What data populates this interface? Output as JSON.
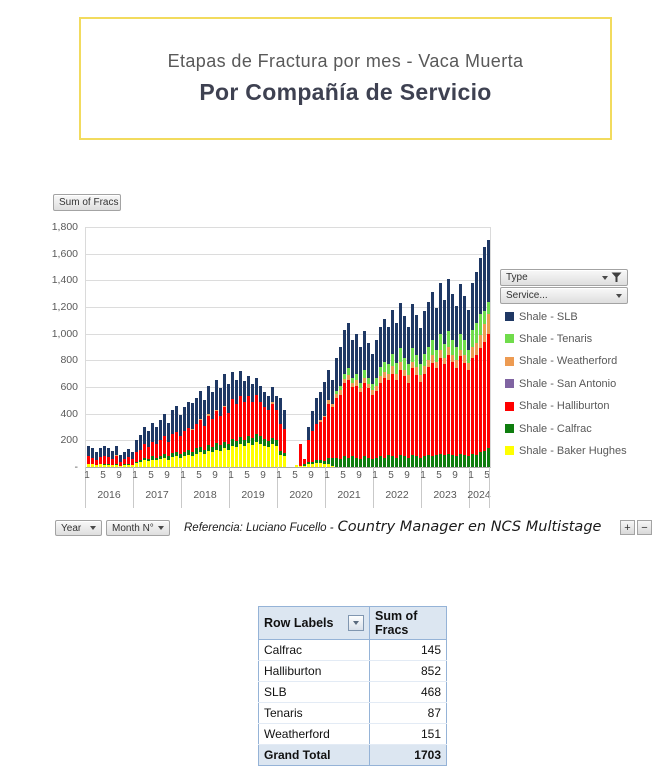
{
  "header": {
    "title_line1": "Etapas de Fractura por mes - Vaca Muerta",
    "title_line2": "Por Compañía de Servicio"
  },
  "chart": {
    "value_field_button": "Sum of Fracs",
    "type_field_button": "Type",
    "service_field_button": "Service...",
    "year_field_button": "Year",
    "month_field_button": "Month N°",
    "zoom_in_label": "+",
    "zoom_out_label": "−",
    "reference_prefix": "Referencia: Luciano Fucello -",
    "reference_suffix": "Country Manager en NCS Multistage"
  },
  "chart_data": {
    "type": "bar",
    "stacked": true,
    "title": "",
    "xlabel": "",
    "ylabel": "Sum of Fracs",
    "ylim": [
      0,
      1800
    ],
    "ytick_step": 200,
    "grid": true,
    "legend_position": "right",
    "ytick_labels": [
      "-",
      "200",
      "400",
      "600",
      "800",
      "1,000",
      "1,200",
      "1,400",
      "1,600",
      "1,800"
    ],
    "month_ticks": [
      1,
      5,
      9
    ],
    "years": [
      {
        "label": "2016",
        "months": 12
      },
      {
        "label": "2017",
        "months": 12
      },
      {
        "label": "2018",
        "months": 12
      },
      {
        "label": "2019",
        "months": 12
      },
      {
        "label": "2020",
        "months": 12
      },
      {
        "label": "2021",
        "months": 12
      },
      {
        "label": "2022",
        "months": 12
      },
      {
        "label": "2023",
        "months": 12
      },
      {
        "label": "2024",
        "months": 5
      }
    ],
    "series": [
      {
        "name": "Shale - Baker Hughes",
        "color": "#FFFF00",
        "values": [
          20,
          20,
          15,
          20,
          20,
          20,
          15,
          20,
          10,
          15,
          20,
          15,
          30,
          35,
          50,
          45,
          55,
          50,
          60,
          70,
          55,
          75,
          80,
          70,
          80,
          90,
          85,
          100,
          110,
          95,
          120,
          110,
          130,
          120,
          140,
          125,
          160,
          150,
          170,
          155,
          180,
          165,
          190,
          175,
          160,
          150,
          170,
          155,
          90,
          80,
          0,
          0,
          15,
          10,
          10,
          20,
          25,
          30,
          30,
          25,
          20,
          10,
          0,
          0,
          0,
          0,
          0,
          0,
          0,
          0,
          0,
          0,
          0,
          0,
          0,
          0,
          0,
          0,
          0,
          0,
          0,
          0,
          0,
          0,
          0,
          0,
          0,
          0,
          0,
          0,
          0,
          0,
          0,
          0,
          0,
          0,
          0,
          0,
          0,
          0,
          0
        ]
      },
      {
        "name": "Shale - Calfrac",
        "color": "#0E7D0E",
        "values": [
          0,
          0,
          0,
          0,
          5,
          5,
          0,
          5,
          0,
          5,
          5,
          0,
          10,
          15,
          20,
          15,
          25,
          20,
          25,
          30,
          25,
          30,
          35,
          30,
          30,
          35,
          30,
          40,
          40,
          35,
          45,
          40,
          50,
          45,
          50,
          45,
          50,
          45,
          55,
          50,
          55,
          50,
          60,
          55,
          50,
          45,
          50,
          45,
          30,
          25,
          0,
          0,
          0,
          0,
          10,
          15,
          15,
          20,
          20,
          20,
          50,
          60,
          70,
          60,
          80,
          70,
          80,
          70,
          60,
          80,
          70,
          60,
          70,
          80,
          70,
          90,
          80,
          70,
          90,
          80,
          70,
          90,
          80,
          70,
          80,
          90,
          80,
          90,
          100,
          90,
          100,
          90,
          80,
          100,
          90,
          80,
          100,
          90,
          110,
          120,
          145
        ]
      },
      {
        "name": "Shale - Halliburton",
        "color": "#FF0000",
        "values": [
          60,
          50,
          40,
          55,
          60,
          50,
          45,
          55,
          30,
          40,
          50,
          45,
          70,
          80,
          100,
          90,
          110,
          100,
          120,
          130,
          110,
          140,
          150,
          130,
          160,
          170,
          160,
          180,
          200,
          180,
          220,
          210,
          240,
          220,
          260,
          235,
          300,
          280,
          310,
          280,
          300,
          270,
          290,
          260,
          240,
          230,
          250,
          230,
          200,
          180,
          0,
          0,
          0,
          165,
          40,
          170,
          230,
          270,
          290,
          330,
          400,
          380,
          450,
          480,
          550,
          580,
          520,
          540,
          500,
          550,
          520,
          480,
          500,
          550,
          600,
          560,
          620,
          580,
          640,
          600,
          560,
          650,
          610,
          570,
          620,
          660,
          700,
          650,
          720,
          680,
          740,
          700,
          660,
          730,
          690,
          650,
          720,
          750,
          780,
          820,
          852
        ]
      },
      {
        "name": "Shale - San Antonio",
        "color": "#8064A2",
        "values": [
          0,
          0,
          0,
          0,
          0,
          0,
          0,
          0,
          0,
          0,
          0,
          0,
          0,
          0,
          0,
          0,
          0,
          0,
          0,
          0,
          0,
          0,
          0,
          0,
          0,
          0,
          0,
          0,
          0,
          0,
          0,
          0,
          0,
          0,
          0,
          0,
          0,
          0,
          0,
          0,
          0,
          0,
          0,
          0,
          0,
          0,
          0,
          0,
          0,
          0,
          0,
          0,
          0,
          0,
          0,
          0,
          0,
          0,
          0,
          0,
          0,
          0,
          0,
          0,
          0,
          0,
          0,
          0,
          0,
          0,
          0,
          0,
          0,
          0,
          0,
          0,
          0,
          0,
          0,
          0,
          0,
          0,
          0,
          0,
          0,
          0,
          0,
          0,
          0,
          0,
          0,
          0,
          0,
          0,
          0,
          0,
          0,
          0,
          0,
          0,
          0
        ]
      },
      {
        "name": "Shale - Weatherford",
        "color": "#ED9B52",
        "values": [
          0,
          0,
          0,
          0,
          0,
          0,
          0,
          10,
          0,
          0,
          0,
          0,
          0,
          0,
          0,
          0,
          0,
          0,
          0,
          0,
          0,
          0,
          0,
          0,
          0,
          0,
          10,
          0,
          10,
          0,
          10,
          0,
          10,
          0,
          10,
          0,
          0,
          0,
          0,
          0,
          0,
          0,
          0,
          0,
          0,
          0,
          15,
          0,
          0,
          0,
          0,
          0,
          0,
          0,
          0,
          0,
          0,
          0,
          10,
          10,
          30,
          20,
          30,
          40,
          30,
          40,
          30,
          40,
          30,
          40,
          30,
          40,
          40,
          50,
          40,
          50,
          60,
          50,
          60,
          50,
          60,
          50,
          60,
          50,
          60,
          50,
          60,
          50,
          60,
          50,
          60,
          50,
          60,
          50,
          60,
          50,
          80,
          90,
          100,
          130,
          151
        ]
      },
      {
        "name": "Shale - Tenaris",
        "color": "#70DC4B",
        "values": [
          0,
          0,
          0,
          0,
          0,
          0,
          0,
          0,
          0,
          0,
          0,
          0,
          0,
          0,
          0,
          0,
          0,
          0,
          0,
          0,
          0,
          0,
          0,
          0,
          0,
          0,
          0,
          0,
          0,
          0,
          0,
          0,
          0,
          0,
          0,
          0,
          0,
          0,
          0,
          0,
          0,
          0,
          0,
          0,
          0,
          0,
          0,
          0,
          0,
          0,
          0,
          0,
          0,
          0,
          0,
          0,
          0,
          0,
          0,
          0,
          0,
          0,
          20,
          30,
          40,
          50,
          40,
          50,
          40,
          60,
          50,
          40,
          60,
          70,
          80,
          70,
          90,
          80,
          100,
          90,
          80,
          100,
          90,
          80,
          90,
          100,
          110,
          90,
          120,
          100,
          120,
          110,
          100,
          120,
          110,
          100,
          130,
          150,
          160,
          100,
          87
        ]
      },
      {
        "name": "Shale - SLB",
        "color": "#1F3864",
        "values": [
          80,
          70,
          60,
          65,
          75,
          70,
          60,
          70,
          50,
          55,
          60,
          55,
          90,
          110,
          130,
          120,
          140,
          130,
          150,
          170,
          140,
          180,
          190,
          160,
          180,
          190,
          195,
          200,
          210,
          190,
          215,
          200,
          220,
          210,
          240,
          215,
          200,
          180,
          185,
          160,
          150,
          140,
          130,
          120,
          110,
          105,
          115,
          105,
          200,
          145,
          0,
          0,
          0,
          0,
          0,
          95,
          150,
          200,
          210,
          255,
          230,
          180,
          250,
          290,
          330,
          340,
          280,
          300,
          270,
          290,
          260,
          230,
          280,
          300,
          320,
          280,
          330,
          300,
          340,
          310,
          280,
          330,
          300,
          270,
          320,
          340,
          360,
          310,
          380,
          330,
          390,
          350,
          310,
          370,
          330,
          300,
          350,
          380,
          420,
          480,
          468
        ]
      }
    ]
  },
  "table": {
    "headers": [
      "Row Labels",
      "Sum of Fracs"
    ],
    "rows": [
      {
        "label": "Calfrac",
        "value": "145"
      },
      {
        "label": "Halliburton",
        "value": "852"
      },
      {
        "label": "SLB",
        "value": "468"
      },
      {
        "label": "Tenaris",
        "value": "87"
      },
      {
        "label": "Weatherford",
        "value": "151"
      }
    ],
    "total": {
      "label": "Grand Total",
      "value": "1703"
    }
  }
}
